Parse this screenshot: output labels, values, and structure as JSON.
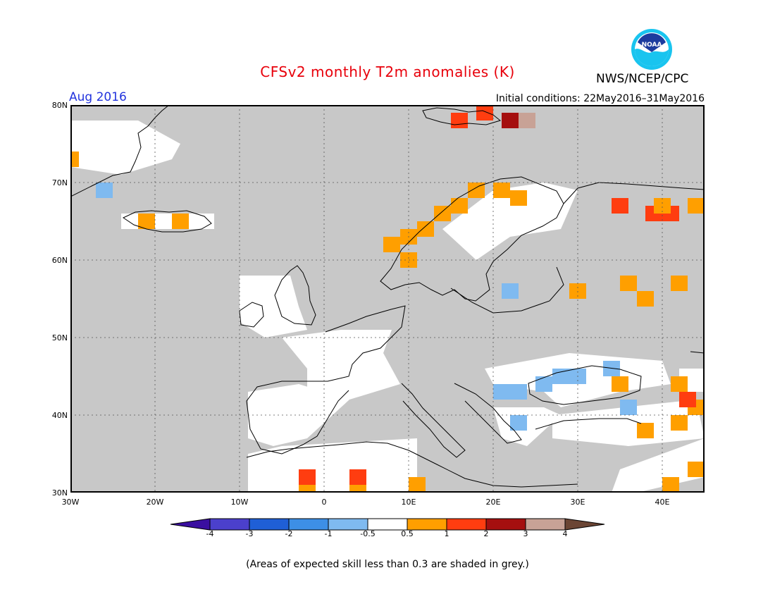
{
  "title": "CFSv2 monthly T2m anomalies (K)",
  "organization": "NWS/NCEP/CPC",
  "logo_text": "NOAA",
  "valid_month": "Aug 2016",
  "initial_conditions": "Initial conditions: 22May2016–31May2016",
  "lat_labels": [
    "80N",
    "70N",
    "60N",
    "50N",
    "40N",
    "30N"
  ],
  "lon_labels": [
    "30W",
    "20W",
    "10W",
    "0",
    "10E",
    "20E",
    "30E",
    "40E"
  ],
  "colorbar": {
    "ticks": [
      "-4",
      "-3",
      "-2",
      "-1",
      "-0.5",
      "0.5",
      "1",
      "2",
      "3",
      "4"
    ],
    "colors": [
      "#3a0fa0",
      "#4b40cc",
      "#1f5fd6",
      "#3d8fe6",
      "#7fbaf0",
      "#ffffff",
      "#ff9f00",
      "#ff3d10",
      "#a50f0f",
      "#c8a296",
      "#6b4534"
    ]
  },
  "footnote": "(Areas of expected skill less than 0.3 are shaded in grey.)",
  "colors": {
    "title": "#e8000b",
    "month_label": "#2233dd",
    "low_skill_grey": "#c8c8c8",
    "warm_orange": "#ff9f00",
    "warm_red": "#ff3d10",
    "cool_blue": "#7fbaf0"
  },
  "map": {
    "lon_range": [
      -30,
      45
    ],
    "lat_range": [
      30,
      80
    ],
    "white_regions": [
      [
        [
          -30,
          72
        ],
        [
          -24,
          71
        ],
        [
          -18,
          73
        ],
        [
          -17,
          75
        ],
        [
          -22,
          78
        ],
        [
          -30,
          78
        ]
      ],
      [
        [
          -24,
          66
        ],
        [
          -13,
          66
        ],
        [
          -13,
          64
        ],
        [
          -24,
          64
        ]
      ],
      [
        [
          -10,
          58
        ],
        [
          -4,
          58
        ],
        [
          -3,
          54
        ],
        [
          -2,
          51
        ],
        [
          -7,
          50
        ],
        [
          -10,
          52
        ]
      ],
      [
        [
          -5,
          50
        ],
        [
          2,
          51
        ],
        [
          8,
          51
        ],
        [
          7,
          48
        ],
        [
          9,
          44
        ],
        [
          3,
          42
        ],
        [
          -2,
          43
        ],
        [
          -2,
          46
        ]
      ],
      [
        [
          -9,
          43
        ],
        [
          -3,
          44
        ],
        [
          3,
          42
        ],
        [
          0,
          39
        ],
        [
          -2,
          37
        ],
        [
          -6,
          36
        ],
        [
          -9,
          37
        ]
      ],
      [
        [
          -9,
          35
        ],
        [
          -5,
          36
        ],
        [
          11,
          37
        ],
        [
          11,
          30
        ],
        [
          -9,
          30
        ]
      ],
      [
        [
          14,
          64
        ],
        [
          20,
          69
        ],
        [
          26,
          70
        ],
        [
          30,
          69
        ],
        [
          28,
          64
        ],
        [
          22,
          63
        ],
        [
          18,
          60
        ]
      ],
      [
        [
          19,
          46
        ],
        [
          29,
          48
        ],
        [
          40,
          47
        ],
        [
          41,
          44
        ],
        [
          35,
          43
        ],
        [
          28,
          41
        ],
        [
          26,
          43
        ],
        [
          20,
          44
        ]
      ],
      [
        [
          20,
          41
        ],
        [
          26,
          41
        ],
        [
          28,
          40
        ],
        [
          24,
          36
        ],
        [
          21,
          37
        ]
      ],
      [
        [
          27,
          40
        ],
        [
          44,
          42
        ],
        [
          45,
          37
        ],
        [
          36,
          36
        ],
        [
          27,
          37
        ]
      ],
      [
        [
          42,
          46
        ],
        [
          45,
          46
        ],
        [
          45,
          43
        ],
        [
          42,
          43
        ]
      ],
      [
        [
          35,
          33
        ],
        [
          45,
          37
        ],
        [
          45,
          32
        ],
        [
          37,
          30
        ],
        [
          34,
          30
        ]
      ]
    ],
    "anomaly_cells": [
      {
        "lon": 8,
        "lat": 62,
        "value": 0.7
      },
      {
        "lon": 10,
        "lat": 63,
        "value": 0.8
      },
      {
        "lon": 12,
        "lat": 64,
        "value": 0.9
      },
      {
        "lon": 14,
        "lat": 66,
        "value": 0.8
      },
      {
        "lon": 16,
        "lat": 67,
        "value": 0.9
      },
      {
        "lon": 18,
        "lat": 69,
        "value": 0.8
      },
      {
        "lon": 21,
        "lat": 69,
        "value": 0.7
      },
      {
        "lon": 23,
        "lat": 68,
        "value": 0.8
      },
      {
        "lon": 10,
        "lat": 60,
        "value": 0.7
      },
      {
        "lon": 16,
        "lat": 78,
        "value": 1.3
      },
      {
        "lon": 19,
        "lat": 79,
        "value": 1.6
      },
      {
        "lon": 22,
        "lat": 78,
        "value": 2.4
      },
      {
        "lon": 24,
        "lat": 78,
        "value": 3.5
      },
      {
        "lon": -21,
        "lat": 65,
        "value": 0.7
      },
      {
        "lon": -17,
        "lat": 65,
        "value": 0.8
      },
      {
        "lon": -30,
        "lat": 73,
        "value": 0.6
      },
      {
        "lon": -26,
        "lat": 69,
        "value": -0.8
      },
      {
        "lon": -2,
        "lat": 31,
        "value": 0.8
      },
      {
        "lon": -2,
        "lat": 32,
        "value": 1.4
      },
      {
        "lon": 4,
        "lat": 31,
        "value": 0.9
      },
      {
        "lon": 4,
        "lat": 32,
        "value": 1.3
      },
      {
        "lon": 11,
        "lat": 31,
        "value": 0.7
      },
      {
        "lon": 36,
        "lat": 57,
        "value": 0.6
      },
      {
        "lon": 38,
        "lat": 55,
        "value": 0.6
      },
      {
        "lon": 42,
        "lat": 57,
        "value": 0.7
      },
      {
        "lon": 30,
        "lat": 56,
        "value": 0.6
      },
      {
        "lon": 35,
        "lat": 67,
        "value": 1.4
      },
      {
        "lon": 39,
        "lat": 66,
        "value": 1.5
      },
      {
        "lon": 41,
        "lat": 66,
        "value": 1.4
      },
      {
        "lon": 44,
        "lat": 67,
        "value": 0.7
      },
      {
        "lon": 40,
        "lat": 67,
        "value": 0.6
      },
      {
        "lon": 38,
        "lat": 38,
        "value": 0.7
      },
      {
        "lon": 42,
        "lat": 39,
        "value": 0.8
      },
      {
        "lon": 44,
        "lat": 41,
        "value": 0.9
      },
      {
        "lon": 43,
        "lat": 42,
        "value": 1.3
      },
      {
        "lon": 42,
        "lat": 44,
        "value": 0.7
      },
      {
        "lon": 44,
        "lat": 33,
        "value": 0.8
      },
      {
        "lon": 41,
        "lat": 31,
        "value": 0.9
      },
      {
        "lon": 23,
        "lat": 43,
        "value": -0.8
      },
      {
        "lon": 26,
        "lat": 44,
        "value": -0.9
      },
      {
        "lon": 28,
        "lat": 45,
        "value": -0.7
      },
      {
        "lon": 30,
        "lat": 45,
        "value": -0.8
      },
      {
        "lon": 21,
        "lat": 43,
        "value": -0.6
      },
      {
        "lon": 34,
        "lat": 46,
        "value": -0.6
      },
      {
        "lon": 36,
        "lat": 41,
        "value": -0.7
      },
      {
        "lon": 22,
        "lat": 56,
        "value": -0.6
      },
      {
        "lon": 23,
        "lat": 39,
        "value": -0.6
      },
      {
        "lon": 35,
        "lat": 44,
        "value": 0.6
      }
    ]
  }
}
